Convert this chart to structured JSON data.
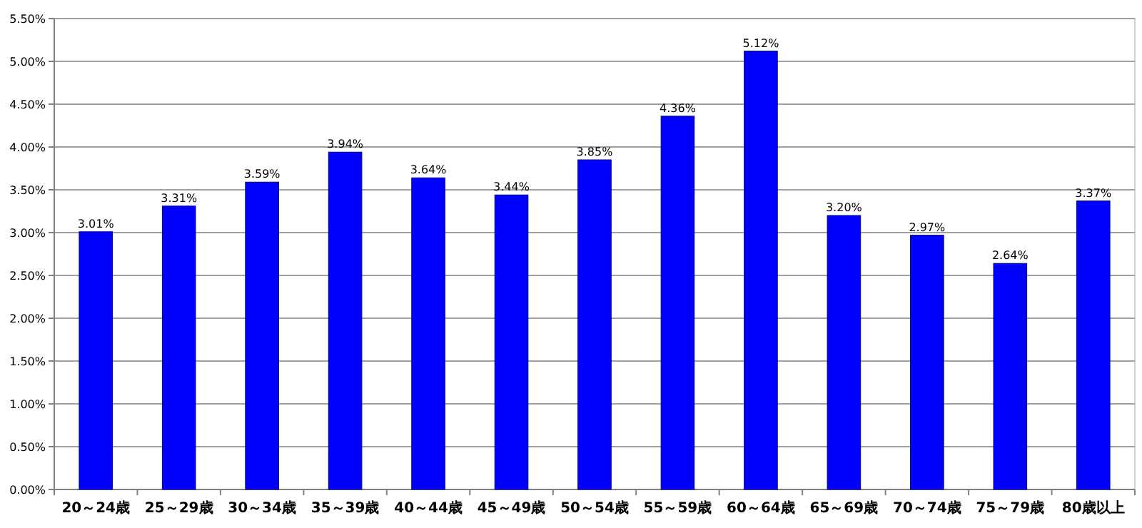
{
  "chart_data": {
    "type": "bar",
    "categories": [
      "20～24歳",
      "25～29歳",
      "30～34歳",
      "35～39歳",
      "40～44歳",
      "45～49歳",
      "50～54歳",
      "55～59歳",
      "60～64歳",
      "65～69歳",
      "70～74歳",
      "75～79歳",
      "80歳以上"
    ],
    "values": [
      3.01,
      3.31,
      3.59,
      3.94,
      3.64,
      3.44,
      3.85,
      4.36,
      5.12,
      3.2,
      2.97,
      2.64,
      3.37
    ],
    "value_labels": [
      "3.01%",
      "3.31%",
      "3.59%",
      "3.94%",
      "3.64%",
      "3.44%",
      "3.85%",
      "4.36%",
      "5.12%",
      "3.20%",
      "2.97%",
      "2.64%",
      "3.37%"
    ],
    "color": "#0000ff",
    "ylim": [
      0,
      5.5
    ],
    "yticks": [
      {
        "value": 0,
        "label": "0.00%"
      },
      {
        "value": 0.5,
        "label": "0.50%"
      },
      {
        "value": 1,
        "label": "1.00%"
      },
      {
        "value": 1.5,
        "label": "1.50%"
      },
      {
        "value": 2,
        "label": "2.00%"
      },
      {
        "value": 2.5,
        "label": "2.50%"
      },
      {
        "value": 3,
        "label": "3.00%"
      },
      {
        "value": 3.5,
        "label": "3.50%"
      },
      {
        "value": 4,
        "label": "4.00%"
      },
      {
        "value": 4.5,
        "label": "4.50%"
      },
      {
        "value": 5,
        "label": "5.00%"
      },
      {
        "value": 5.5,
        "label": "5.50%"
      }
    ],
    "grid": "y"
  }
}
